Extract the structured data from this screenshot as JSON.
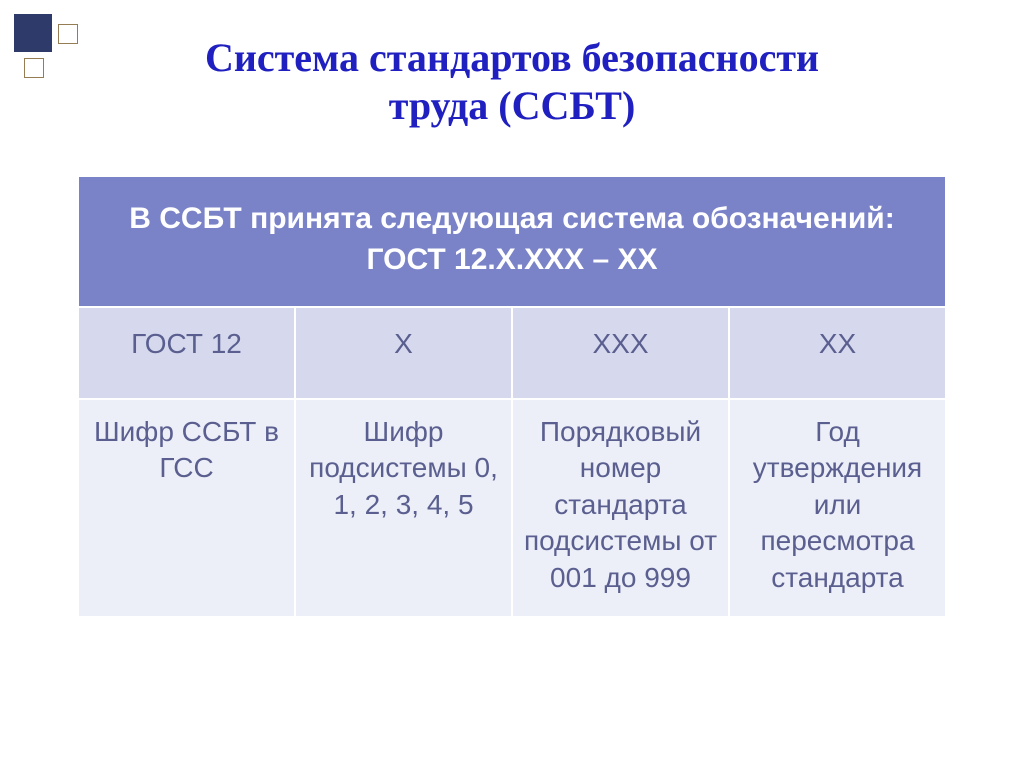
{
  "title": {
    "line1": "Система стандартов безопасности",
    "line2": "труда  (ССБТ)",
    "color": "#2020c0",
    "fontsize": 40
  },
  "table": {
    "header_bg": "#7b83c8",
    "sub_bg": "#d6d9ee",
    "desc_bg": "#eceef8",
    "text_color": "#5a5f8f",
    "header_fontsize": 30,
    "cell_fontsize": 28,
    "header": {
      "line1": "В ССБТ принята следующая система обозначений:",
      "line2": "ГОСТ 12.Х.ХХХ – ХХ"
    },
    "columns": [
      "ГОСТ 12",
      "Х",
      "ХХХ",
      "ХХ"
    ],
    "descriptions": [
      "Шифр ССБТ в ГСС",
      "Шифр подсистемы 0, 1, 2, 3, 4, 5",
      "Порядковый номер стандарта подсистемы от 001 до 999",
      "Год утверждения или пересмотра стандарта"
    ]
  }
}
